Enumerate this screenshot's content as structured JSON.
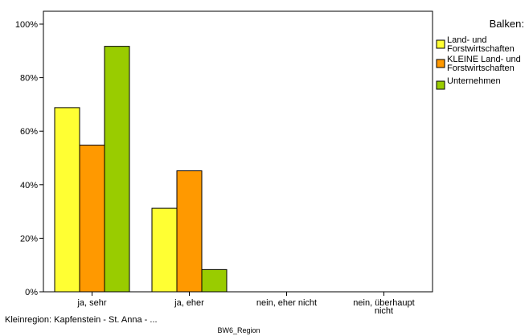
{
  "chart_data": {
    "type": "bar",
    "categories": [
      [
        "ja, sehr"
      ],
      [
        "ja, eher"
      ],
      [
        "nein, eher nicht"
      ],
      [
        "nein, überhaupt",
        "nicht"
      ]
    ],
    "series": [
      {
        "name": [
          "Land- und",
          "Forstwirtschaften"
        ],
        "color": "#ffff33",
        "values": [
          68.8,
          31.2,
          0,
          0
        ]
      },
      {
        "name": [
          "KLEINE Land- und",
          "Forstwirtschaften"
        ],
        "color": "#ff9900",
        "values": [
          54.8,
          45.2,
          0,
          0
        ]
      },
      {
        "name": [
          "Unternehmen"
        ],
        "color": "#99cc00",
        "values": [
          91.7,
          8.3,
          0,
          0
        ]
      }
    ],
    "yticks": [
      "0%",
      "20%",
      "40%",
      "60%",
      "80%",
      "100%"
    ],
    "ylim": [
      0,
      100
    ],
    "legend_title": "Balken:",
    "legend_position": "top-right",
    "xlabel": "BW6_Region",
    "footnote": "Kleinregion: Kapfenstein - St. Anna - ..."
  }
}
